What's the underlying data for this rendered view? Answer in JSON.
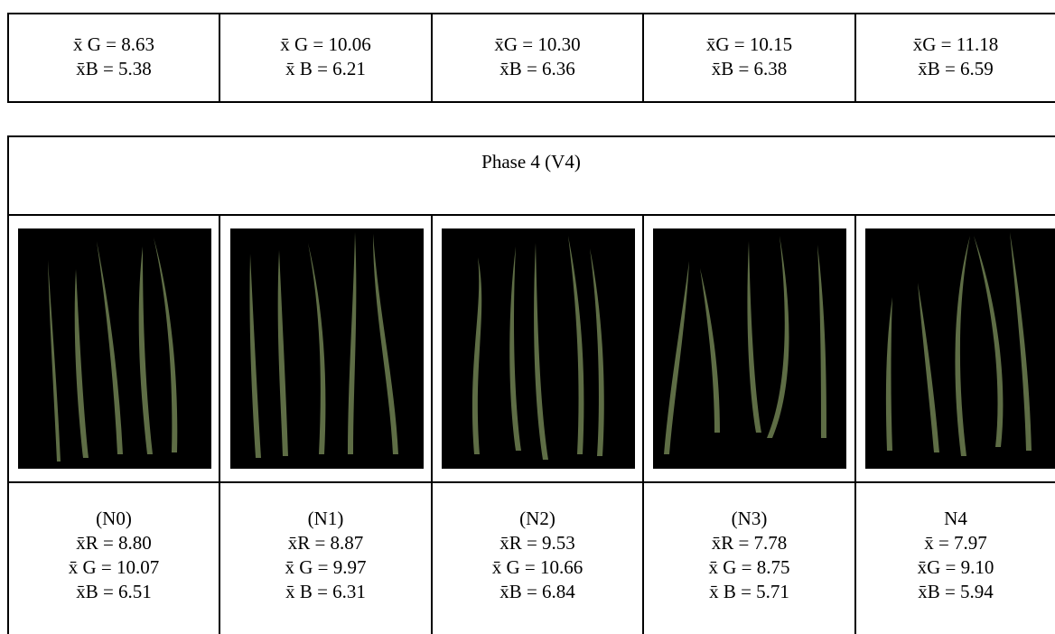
{
  "top_table": {
    "cells": [
      {
        "g": "x̄ G = 8.63",
        "b": "x̄B = 5.38"
      },
      {
        "g": "x̄ G = 10.06",
        "b": "x̄ B = 6.21"
      },
      {
        "g": "x̄G = 10.30",
        "b": "x̄B = 6.36"
      },
      {
        "g": "x̄G = 10.15",
        "b": "x̄B = 6.38"
      },
      {
        "g": "x̄G = 11.18",
        "b": "x̄B = 6.59"
      }
    ]
  },
  "phase_table": {
    "title": "Phase 4 (V4)",
    "leaf_color": "#5e6d45",
    "photo_background": "#000000",
    "cells": [
      {
        "label": "(N0)",
        "r": "x̄R = 8.80",
        "g": "x̄ G = 10.07",
        "b": "x̄B = 6.51"
      },
      {
        "label": "(N1)",
        "r": "x̄R = 8.87",
        "g": "x̄ G = 9.97",
        "b": "x̄ B = 6.31"
      },
      {
        "label": "(N2)",
        "r": "x̄R = 9.53",
        "g": "x̄ G = 10.66",
        "b": "x̄B = 6.84"
      },
      {
        "label": "(N3)",
        "r": "x̄R = 7.78",
        "g": "x̄ G = 8.75",
        "b": "x̄ B = 5.71"
      },
      {
        "label": "N4",
        "r": "x̄ = 7.97",
        "g": "x̄G = 9.10",
        "b": "x̄B = 5.94"
      }
    ]
  }
}
